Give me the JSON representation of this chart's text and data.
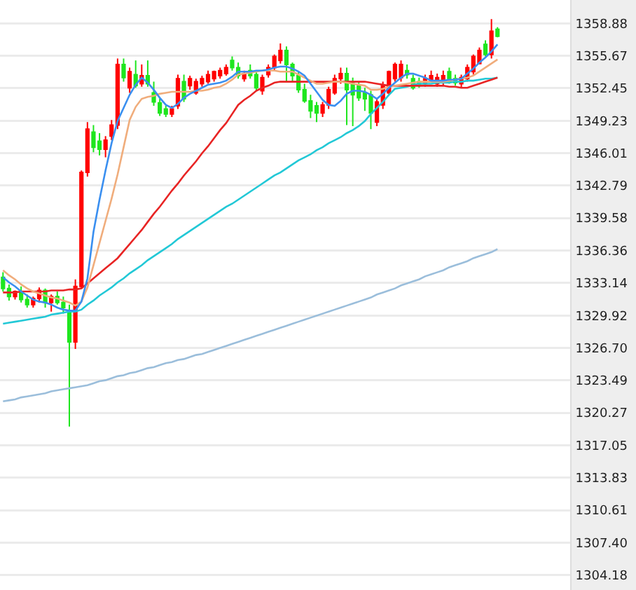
{
  "chart_data": {
    "type": "candlestick",
    "categories": [
      null,
      null,
      null,
      null,
      null,
      null,
      null,
      null,
      null,
      null,
      null,
      null,
      null,
      null,
      null,
      null,
      null,
      null,
      null,
      null,
      null,
      null,
      null,
      null,
      null,
      null,
      null,
      null,
      null,
      null,
      null,
      null,
      null,
      null,
      null,
      null,
      null,
      null,
      null,
      null,
      null,
      null,
      null,
      null,
      null,
      null,
      null,
      null,
      null,
      null,
      null,
      null,
      null,
      null,
      null,
      null,
      null,
      null,
      null,
      null,
      null,
      null,
      null,
      null,
      null,
      null,
      null,
      null,
      null,
      null,
      null,
      null,
      null,
      null,
      null,
      null,
      null,
      null,
      null,
      null,
      null,
      null,
      null
    ],
    "ohlc": [
      [
        1333.7,
        1334.2,
        1332.3,
        1332.6
      ],
      [
        1332.6,
        1333.0,
        1331.4,
        1331.8
      ],
      [
        1331.8,
        1332.4,
        1331.5,
        1332.3
      ],
      [
        1332.3,
        1332.8,
        1331.2,
        1331.5
      ],
      [
        1331.5,
        1332.0,
        1330.7,
        1331.0
      ],
      [
        1331.0,
        1331.8,
        1330.7,
        1331.6
      ],
      [
        1331.6,
        1332.7,
        1331.2,
        1332.4
      ],
      [
        1332.4,
        1332.6,
        1330.7,
        1331.2
      ],
      [
        1331.2,
        1332.0,
        1330.3,
        1331.8
      ],
      [
        1331.8,
        1332.3,
        1331.0,
        1331.2
      ],
      [
        1331.2,
        1331.8,
        1330.1,
        1330.7
      ],
      [
        1330.4,
        1331.0,
        1318.9,
        1327.3
      ],
      [
        1327.3,
        1333.5,
        1326.6,
        1332.8
      ],
      [
        1332.8,
        1344.3,
        1332.6,
        1344.1
      ],
      [
        1344.1,
        1349.1,
        1343.7,
        1348.4
      ],
      [
        1348.1,
        1348.8,
        1346.1,
        1346.6
      ],
      [
        1347.2,
        1348.0,
        1345.8,
        1346.4
      ],
      [
        1346.4,
        1347.7,
        1345.6,
        1347.3
      ],
      [
        1347.7,
        1349.3,
        1347.3,
        1348.8
      ],
      [
        1348.8,
        1355.4,
        1348.4,
        1354.8
      ],
      [
        1354.8,
        1355.4,
        1353.1,
        1353.5
      ],
      [
        1352.5,
        1354.5,
        1352.0,
        1354.1
      ],
      [
        1353.8,
        1355.2,
        1352.5,
        1352.7
      ],
      [
        1352.9,
        1354.8,
        1352.6,
        1353.7
      ],
      [
        1353.7,
        1355.2,
        1352.6,
        1352.9
      ],
      [
        1352.0,
        1353.1,
        1350.7,
        1351.1
      ],
      [
        1351.0,
        1351.5,
        1349.7,
        1350.0
      ],
      [
        1350.4,
        1350.7,
        1349.6,
        1349.9
      ],
      [
        1349.9,
        1350.7,
        1349.6,
        1350.4
      ],
      [
        1350.7,
        1353.8,
        1350.4,
        1353.4
      ],
      [
        1353.1,
        1353.8,
        1351.1,
        1351.4
      ],
      [
        1352.7,
        1353.7,
        1352.3,
        1353.4
      ],
      [
        1352.0,
        1353.4,
        1351.8,
        1353.1
      ],
      [
        1352.9,
        1353.7,
        1352.6,
        1353.4
      ],
      [
        1353.1,
        1354.2,
        1352.9,
        1353.8
      ],
      [
        1353.4,
        1354.2,
        1353.1,
        1354.1
      ],
      [
        1353.7,
        1354.5,
        1353.4,
        1354.2
      ],
      [
        1353.9,
        1354.8,
        1353.7,
        1354.5
      ],
      [
        1355.2,
        1355.6,
        1354.2,
        1354.5
      ],
      [
        1354.5,
        1355.0,
        1353.4,
        1353.7
      ],
      [
        1353.4,
        1354.2,
        1353.1,
        1353.9
      ],
      [
        1354.2,
        1354.8,
        1353.4,
        1353.7
      ],
      [
        1353.8,
        1354.2,
        1352.2,
        1352.5
      ],
      [
        1352.2,
        1353.8,
        1351.8,
        1353.5
      ],
      [
        1353.8,
        1354.8,
        1353.5,
        1354.5
      ],
      [
        1354.5,
        1355.8,
        1354.2,
        1355.6
      ],
      [
        1355.2,
        1356.9,
        1354.9,
        1356.2
      ],
      [
        1356.2,
        1356.6,
        1353.1,
        1354.8
      ],
      [
        1354.8,
        1355.0,
        1353.1,
        1353.7
      ],
      [
        1353.7,
        1354.1,
        1352.0,
        1352.3
      ],
      [
        1352.3,
        1352.9,
        1351.0,
        1351.2
      ],
      [
        1351.2,
        1351.8,
        1349.5,
        1350.2
      ],
      [
        1350.7,
        1351.1,
        1349.1,
        1350.0
      ],
      [
        1350.0,
        1351.1,
        1349.6,
        1350.8
      ],
      [
        1350.8,
        1352.6,
        1350.4,
        1352.3
      ],
      [
        1352.0,
        1353.8,
        1351.8,
        1353.4
      ],
      [
        1353.4,
        1354.5,
        1352.9,
        1353.9
      ],
      [
        1353.9,
        1354.5,
        1348.8,
        1352.3
      ],
      [
        1352.9,
        1353.5,
        1348.7,
        1351.8
      ],
      [
        1352.7,
        1353.1,
        1351.2,
        1351.5
      ],
      [
        1352.0,
        1352.5,
        1350.2,
        1351.4
      ],
      [
        1351.8,
        1352.2,
        1348.4,
        1350.0
      ],
      [
        1349.1,
        1351.4,
        1348.7,
        1351.1
      ],
      [
        1350.8,
        1353.1,
        1350.4,
        1352.7
      ],
      [
        1352.0,
        1354.2,
        1351.8,
        1354.1
      ],
      [
        1353.4,
        1355.0,
        1353.1,
        1354.8
      ],
      [
        1353.5,
        1355.2,
        1353.1,
        1354.8
      ],
      [
        1354.2,
        1354.8,
        1353.4,
        1353.8
      ],
      [
        1353.4,
        1353.8,
        1352.3,
        1352.5
      ],
      [
        1353.1,
        1353.5,
        1352.5,
        1352.7
      ],
      [
        1352.9,
        1353.8,
        1352.6,
        1353.4
      ],
      [
        1353.1,
        1354.2,
        1353.0,
        1353.7
      ],
      [
        1352.9,
        1353.9,
        1352.6,
        1353.5
      ],
      [
        1353.0,
        1354.2,
        1352.7,
        1353.7
      ],
      [
        1354.1,
        1354.5,
        1352.9,
        1353.1
      ],
      [
        1353.4,
        1353.8,
        1352.7,
        1353.0
      ],
      [
        1352.9,
        1353.8,
        1352.5,
        1353.5
      ],
      [
        1353.4,
        1354.8,
        1353.1,
        1354.5
      ],
      [
        1354.1,
        1355.8,
        1353.8,
        1355.6
      ],
      [
        1354.9,
        1356.5,
        1354.8,
        1356.2
      ],
      [
        1356.8,
        1357.2,
        1355.6,
        1355.8
      ],
      [
        1355.8,
        1359.3,
        1355.4,
        1358.1
      ],
      [
        1358.3,
        1358.5,
        1357.5,
        1357.6
      ]
    ],
    "colors": [
      "#1ee61e",
      "#1ee61e",
      "#ff0000",
      "#1ee61e",
      "#1ee61e",
      "#ff0000",
      "#ff0000",
      "#1ee61e",
      "#ff0000",
      "#1ee61e",
      "#1ee61e",
      "#1ee61e",
      "#ff0000",
      "#ff0000",
      "#ff0000",
      "#1ee61e",
      "#1ee61e",
      "#ff0000",
      "#ff0000",
      "#ff0000",
      "#1ee61e",
      "#ff0000",
      "#1ee61e",
      "#ff0000",
      "#1ee61e",
      "#1ee61e",
      "#1ee61e",
      "#1ee61e",
      "#ff0000",
      "#ff0000",
      "#1ee61e",
      "#ff0000",
      "#ff0000",
      "#ff0000",
      "#ff0000",
      "#ff0000",
      "#ff0000",
      "#ff0000",
      "#1ee61e",
      "#1ee61e",
      "#ff0000",
      "#1ee61e",
      "#1ee61e",
      "#ff0000",
      "#ff0000",
      "#ff0000",
      "#ff0000",
      "#1ee61e",
      "#1ee61e",
      "#1ee61e",
      "#1ee61e",
      "#1ee61e",
      "#1ee61e",
      "#ff0000",
      "#ff0000",
      "#ff0000",
      "#ff0000",
      "#1ee61e",
      "#1ee61e",
      "#1ee61e",
      "#1ee61e",
      "#1ee61e",
      "#ff0000",
      "#ff0000",
      "#ff0000",
      "#ff0000",
      "#ff0000",
      "#1ee61e",
      "#1ee61e",
      "#1ee61e",
      "#ff0000",
      "#ff0000",
      "#ff0000",
      "#ff0000",
      "#1ee61e",
      "#1ee61e",
      "#ff0000",
      "#ff0000",
      "#ff0000",
      "#ff0000",
      "#1ee61e",
      "#ff0000",
      "#1ee61e"
    ],
    "series": [
      {
        "type": "line",
        "color": "#9bbedb",
        "values": [
          1321.4,
          1321.5,
          1321.6,
          1321.8,
          1321.9,
          1322.0,
          1322.1,
          1322.2,
          1322.4,
          1322.5,
          1322.6,
          1322.7,
          1322.8,
          1322.9,
          1323.0,
          1323.2,
          1323.4,
          1323.5,
          1323.7,
          1323.9,
          1324.0,
          1324.2,
          1324.3,
          1324.5,
          1324.7,
          1324.8,
          1325.0,
          1325.2,
          1325.3,
          1325.5,
          1325.6,
          1325.8,
          1326.0,
          1326.1,
          1326.3,
          1326.5,
          1326.7,
          1326.9,
          1327.1,
          1327.3,
          1327.5,
          1327.7,
          1327.9,
          1328.1,
          1328.3,
          1328.5,
          1328.7,
          1328.9,
          1329.1,
          1329.3,
          1329.5,
          1329.7,
          1329.9,
          1330.1,
          1330.3,
          1330.5,
          1330.7,
          1330.9,
          1331.1,
          1331.3,
          1331.5,
          1331.7,
          1332.0,
          1332.2,
          1332.4,
          1332.6,
          1332.9,
          1333.1,
          1333.3,
          1333.5,
          1333.8,
          1334.0,
          1334.2,
          1334.4,
          1334.7,
          1334.9,
          1335.1,
          1335.3,
          1335.6,
          1335.8,
          1336.0,
          1336.2,
          1336.5
        ]
      },
      {
        "type": "line",
        "color": "#22c8d6",
        "values": [
          1329.1,
          1329.2,
          1329.3,
          1329.4,
          1329.5,
          1329.6,
          1329.7,
          1329.8,
          1330.0,
          1330.1,
          1330.2,
          1330.3,
          1330.3,
          1330.5,
          1331.0,
          1331.4,
          1331.9,
          1332.3,
          1332.7,
          1333.2,
          1333.6,
          1334.1,
          1334.5,
          1334.9,
          1335.4,
          1335.8,
          1336.2,
          1336.6,
          1337.0,
          1337.5,
          1337.9,
          1338.3,
          1338.7,
          1339.1,
          1339.5,
          1339.9,
          1340.3,
          1340.7,
          1341.0,
          1341.4,
          1341.8,
          1342.2,
          1342.6,
          1343.0,
          1343.4,
          1343.8,
          1344.1,
          1344.5,
          1344.9,
          1345.3,
          1345.6,
          1345.9,
          1346.3,
          1346.6,
          1347.0,
          1347.3,
          1347.6,
          1348.0,
          1348.3,
          1348.7,
          1349.2,
          1349.9,
          1350.5,
          1351.1,
          1351.8,
          1352.4,
          1352.5,
          1352.6,
          1352.8,
          1352.9,
          1352.9,
          1352.9,
          1353.0,
          1353.0,
          1353.0,
          1353.1,
          1353.1,
          1353.2,
          1353.2,
          1353.3,
          1353.4,
          1353.4,
          1353.5
        ]
      },
      {
        "type": "line",
        "color": "#e82424",
        "values": [
          1332.2,
          1332.2,
          1332.2,
          1332.3,
          1332.3,
          1332.3,
          1332.3,
          1332.3,
          1332.4,
          1332.4,
          1332.4,
          1332.5,
          1332.5,
          1332.6,
          1333.1,
          1333.6,
          1334.1,
          1334.6,
          1335.1,
          1335.6,
          1336.3,
          1337.0,
          1337.7,
          1338.4,
          1339.2,
          1340.0,
          1340.7,
          1341.5,
          1342.3,
          1343.0,
          1343.8,
          1344.5,
          1345.2,
          1346.0,
          1346.7,
          1347.5,
          1348.3,
          1349.0,
          1349.9,
          1350.8,
          1351.3,
          1351.7,
          1352.2,
          1352.5,
          1352.7,
          1353.0,
          1353.1,
          1353.1,
          1353.1,
          1353.1,
          1353.1,
          1353.1,
          1353.1,
          1353.1,
          1353.1,
          1353.1,
          1353.1,
          1353.1,
          1353.1,
          1353.1,
          1353.1,
          1353.0,
          1352.9,
          1352.8,
          1352.7,
          1352.7,
          1352.7,
          1352.7,
          1352.7,
          1352.7,
          1352.7,
          1352.7,
          1352.7,
          1352.7,
          1352.6,
          1352.6,
          1352.5,
          1352.5,
          1352.7,
          1352.9,
          1353.1,
          1353.3,
          1353.5
        ]
      },
      {
        "type": "line",
        "color": "#f0ad7c",
        "values": [
          1334.4,
          1333.9,
          1333.5,
          1333.0,
          1332.6,
          1332.3,
          1332.1,
          1331.9,
          1331.7,
          1331.6,
          1331.4,
          1331.2,
          1330.9,
          1331.3,
          1332.7,
          1334.9,
          1337.1,
          1339.3,
          1341.5,
          1343.9,
          1346.6,
          1349.3,
          1350.6,
          1351.4,
          1351.6,
          1351.7,
          1351.9,
          1352.0,
          1352.1,
          1352.1,
          1352.1,
          1352.1,
          1352.2,
          1352.2,
          1352.3,
          1352.5,
          1352.6,
          1352.9,
          1353.3,
          1353.8,
          1353.9,
          1354.0,
          1354.1,
          1354.2,
          1354.2,
          1354.2,
          1354.1,
          1354.1,
          1354.1,
          1353.8,
          1353.5,
          1353.2,
          1352.9,
          1352.9,
          1353.0,
          1353.1,
          1353.1,
          1353.0,
          1352.9,
          1352.8,
          1352.7,
          1352.3,
          1352.3,
          1352.4,
          1352.6,
          1352.7,
          1352.8,
          1352.9,
          1353.0,
          1353.1,
          1353.1,
          1353.1,
          1353.1,
          1353.1,
          1353.2,
          1353.3,
          1353.4,
          1353.5,
          1353.7,
          1354.1,
          1354.5,
          1354.9,
          1355.3
        ]
      },
      {
        "type": "line",
        "color": "#3a8ff0",
        "values": [
          1333.7,
          1333.2,
          1332.8,
          1332.3,
          1331.9,
          1331.5,
          1331.3,
          1331.2,
          1331.0,
          1330.7,
          1330.5,
          1330.4,
          1330.4,
          1331.3,
          1333.6,
          1338.2,
          1341.4,
          1344.3,
          1347.0,
          1349.2,
          1350.5,
          1351.8,
          1352.8,
          1353.5,
          1353.0,
          1352.3,
          1351.5,
          1350.8,
          1350.5,
          1350.9,
          1351.5,
          1351.9,
          1352.2,
          1352.5,
          1352.8,
          1352.9,
          1353.0,
          1353.2,
          1353.6,
          1354.1,
          1354.1,
          1354.1,
          1354.2,
          1354.2,
          1354.3,
          1354.5,
          1354.6,
          1354.6,
          1354.4,
          1354.1,
          1353.7,
          1352.9,
          1352.1,
          1351.3,
          1350.8,
          1350.7,
          1351.2,
          1351.9,
          1352.2,
          1352.2,
          1352.1,
          1351.8,
          1351.4,
          1351.9,
          1352.5,
          1353.0,
          1353.5,
          1353.9,
          1353.9,
          1353.7,
          1353.5,
          1353.2,
          1353.2,
          1353.2,
          1353.3,
          1353.3,
          1353.4,
          1353.9,
          1354.4,
          1355.0,
          1355.5,
          1356.1,
          1356.8
        ]
      }
    ],
    "ylim": [
      1302.7,
      1361.2
    ],
    "yticks": [
      1304.18,
      {
        "value": 1307.4,
        "label": "1307.40"
      },
      1310.61,
      1313.83,
      1317.05,
      1320.27,
      1323.49,
      {
        "value": 1326.7,
        "label": "1326.70"
      },
      1329.92,
      1333.14,
      1336.36,
      1339.58,
      1342.79,
      1346.01,
      1349.23,
      1352.45,
      1355.67,
      1358.88
    ],
    "grid": "y",
    "tick_labels": "y"
  }
}
